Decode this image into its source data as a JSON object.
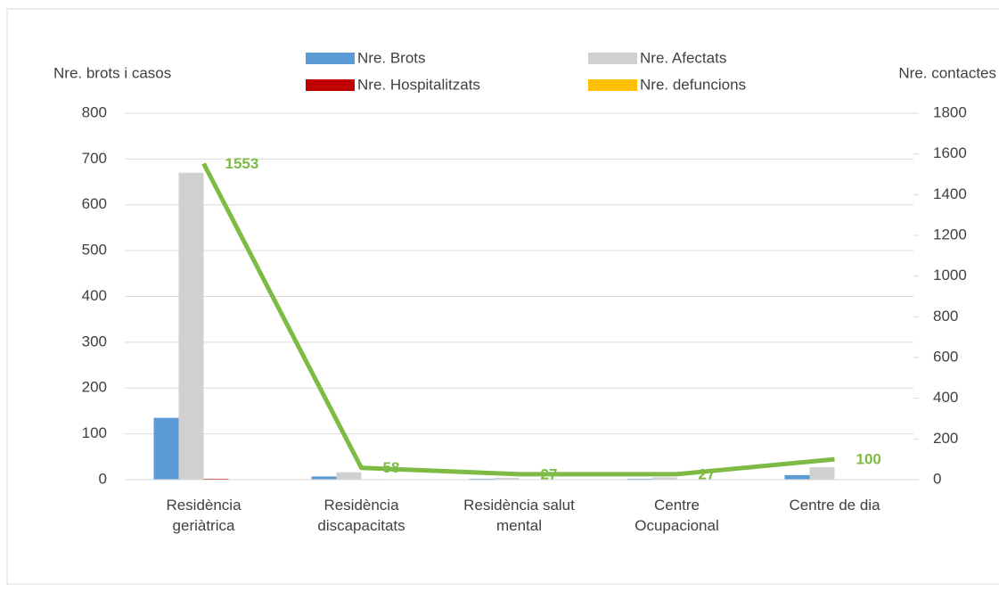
{
  "chart_data": {
    "type": "bar",
    "y_label": "Nre. brots i casos",
    "y2_label": "Nre. contactes",
    "categories": [
      "Residència geriàtrica",
      "Residència discapacitats",
      "Residència salut mental",
      "Centre Ocupacional",
      "Centre de dia"
    ],
    "series": [
      {
        "name": "Nre. Brots",
        "color": "#5b9bd5",
        "values": [
          135,
          7,
          2,
          2,
          10
        ]
      },
      {
        "name": "Nre. Afectats",
        "color": "#d0d0d0",
        "values": [
          670,
          16,
          4,
          5,
          27
        ]
      },
      {
        "name": "Nre. Hospitalitzats",
        "color": "#c00000",
        "values": [
          2,
          1,
          0,
          0,
          0
        ]
      },
      {
        "name": "Nre. defuncions",
        "color": "#ffc000",
        "values": [
          0,
          0,
          0,
          0,
          0
        ]
      },
      {
        "name": "Nre. contactes",
        "type": "line",
        "axis": "y2",
        "color": "#7dbb44",
        "values": [
          1553,
          58,
          27,
          27,
          100
        ],
        "data_labels": true
      }
    ],
    "ylim": [
      0,
      800
    ],
    "yticks": [
      0,
      100,
      200,
      300,
      400,
      500,
      600,
      700,
      800
    ],
    "y2lim": [
      0,
      1800
    ],
    "y2ticks": [
      0,
      200,
      400,
      600,
      800,
      1000,
      1200,
      1400,
      1600,
      1800
    ],
    "grid": true,
    "legend": "top"
  }
}
